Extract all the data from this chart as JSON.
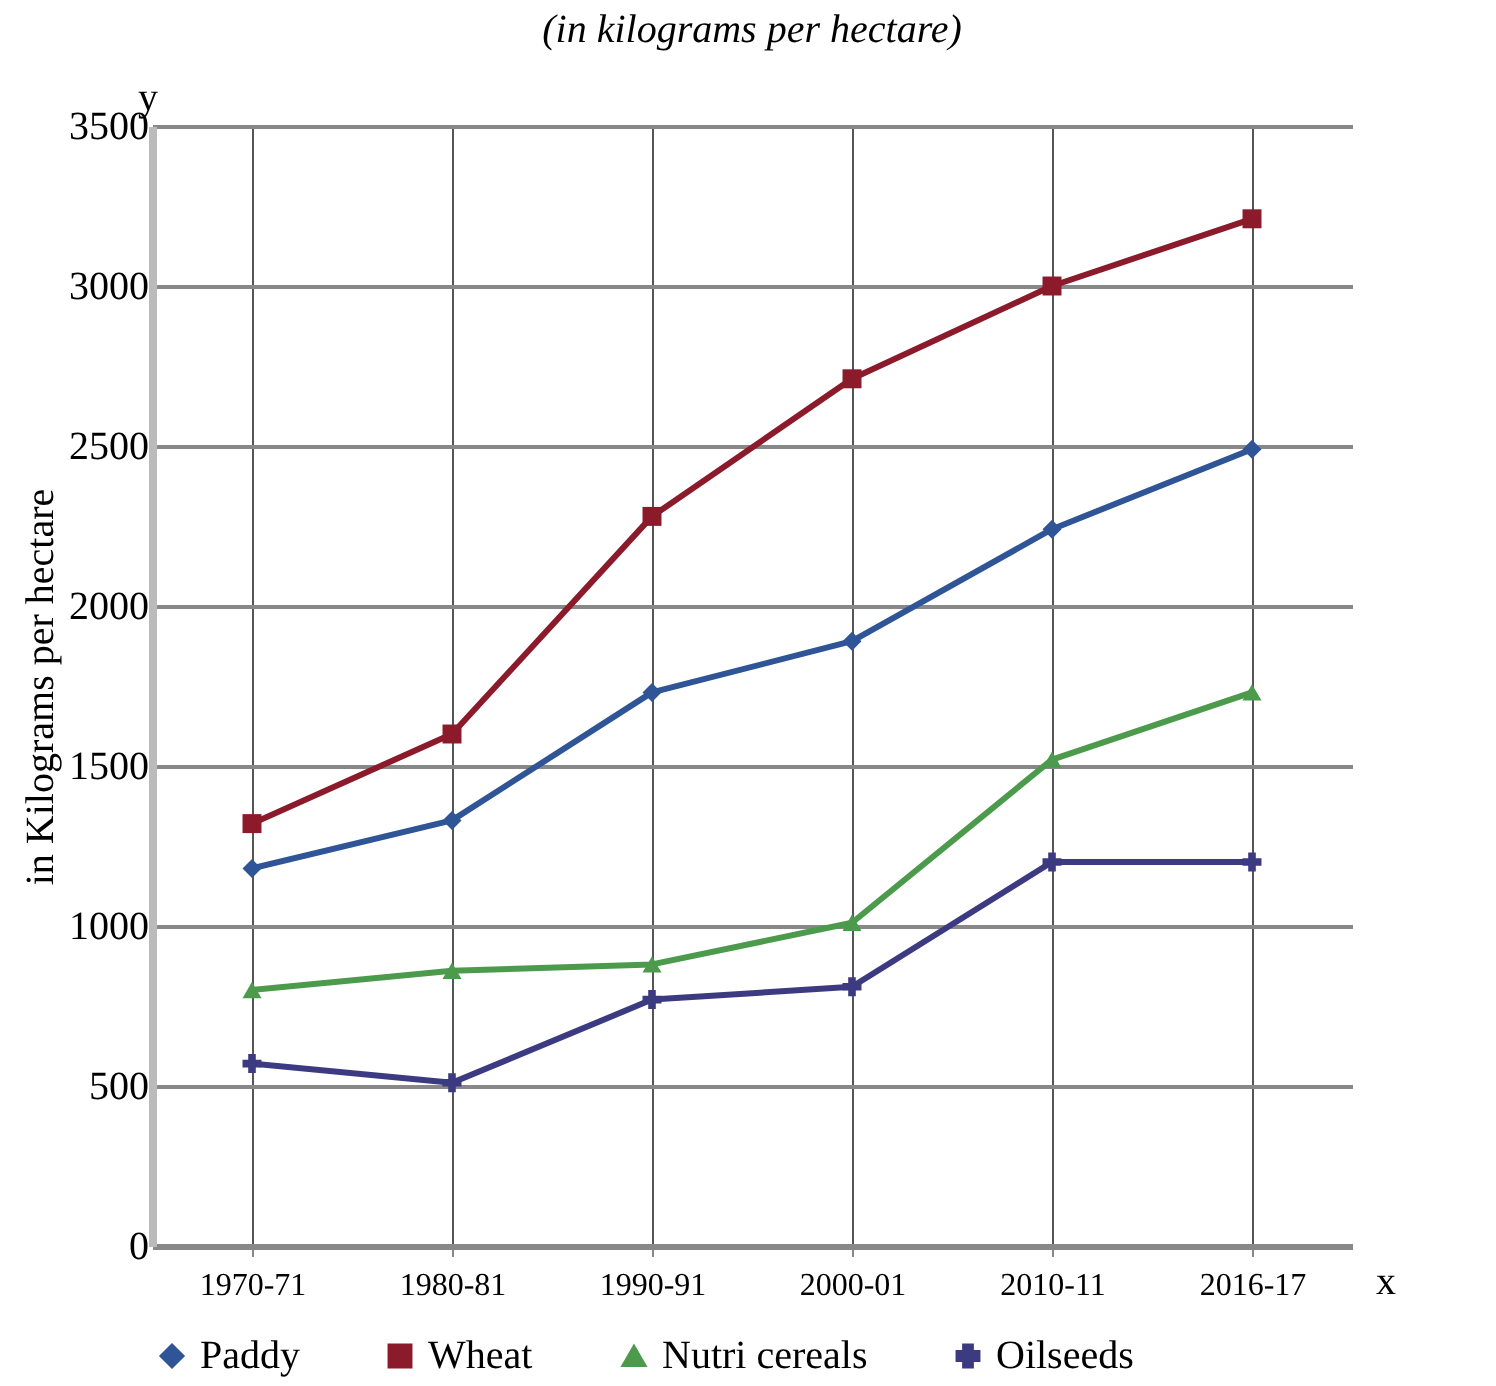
{
  "chart_data": {
    "type": "line",
    "title": "(in kilograms per hectare)",
    "ylabel": "in Kilograms per hectare",
    "categories": [
      "1970-71",
      "1980-81",
      "1990-91",
      "2000-01",
      "2010-11",
      "2016-17"
    ],
    "series": [
      {
        "name": "Paddy",
        "color": "#2f5597",
        "marker": "diamond",
        "values": [
          1180,
          1330,
          1730,
          1890,
          2240,
          2490
        ]
      },
      {
        "name": "Wheat",
        "color": "#8b1a2b",
        "marker": "square",
        "values": [
          1320,
          1600,
          2280,
          2710,
          3000,
          3210
        ]
      },
      {
        "name": "Nutri cereals",
        "color": "#4c9a4c",
        "marker": "triangle",
        "values": [
          800,
          860,
          880,
          1010,
          1520,
          1730
        ]
      },
      {
        "name": "Oilseeds",
        "color": "#3c3a80",
        "marker": "cross",
        "values": [
          570,
          510,
          770,
          810,
          1200,
          1200
        ]
      }
    ],
    "ylim": [
      0,
      3500
    ],
    "yticks": [
      0,
      500,
      1000,
      1500,
      2000,
      2500,
      3000,
      3500
    ],
    "grid": true,
    "legend": "bottom",
    "line_style": "solid",
    "annotations": [
      "y",
      "x"
    ]
  }
}
